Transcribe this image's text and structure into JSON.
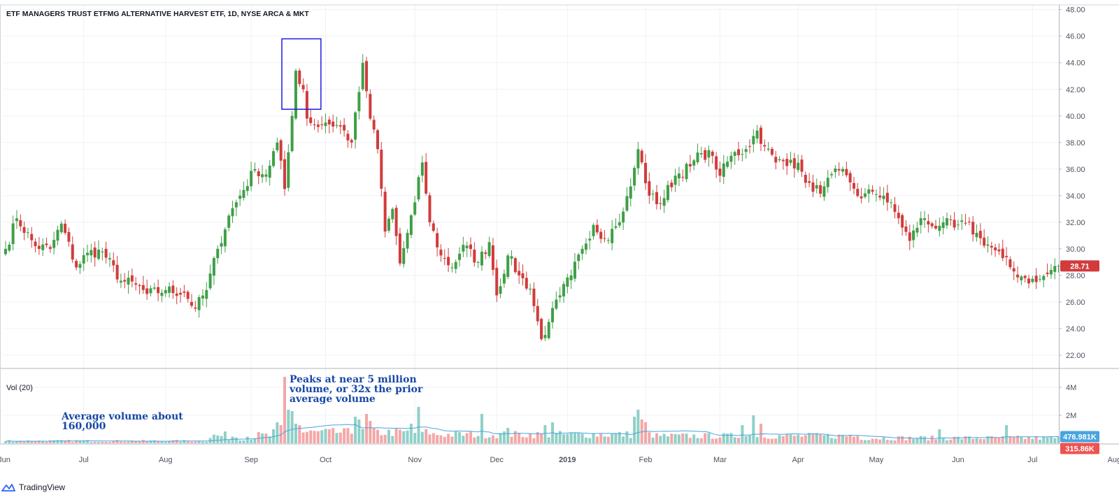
{
  "footer": {
    "brand": "TradingView",
    "logo_icon": "tradingview-logo-icon"
  },
  "chart_data": {
    "type": "candlestick",
    "title": "ETF MANAGERS TRUST ETFMG ALTERNATIVE HARVEST ETF, 1D, NYSE ARCA & MKT",
    "price_axis": {
      "ticks": [
        "48.00",
        "46.00",
        "44.00",
        "42.00",
        "40.00",
        "38.00",
        "36.00",
        "34.00",
        "32.00",
        "30.00",
        "28.00",
        "26.00",
        "24.00",
        "22.00"
      ],
      "ylim": [
        21.0,
        48.3
      ]
    },
    "last_price": {
      "label": "28.71",
      "value": 28.71
    },
    "volume": {
      "label": "Vol (20)",
      "ticks": [
        "4M",
        "2M"
      ],
      "ylim": [
        0,
        5200000
      ],
      "ma_label": "476.981K",
      "last_label": "315.86K"
    },
    "x_axis": {
      "labels": [
        {
          "text": "Jun",
          "index": -2
        },
        {
          "text": "Jul",
          "index": 21
        },
        {
          "text": "Aug",
          "index": 43
        },
        {
          "text": "Sep",
          "index": 66
        },
        {
          "text": "Oct",
          "index": 86
        },
        {
          "text": "Nov",
          "index": 110
        },
        {
          "text": "Dec",
          "index": 132
        },
        {
          "text": "2019",
          "index": 151
        },
        {
          "text": "Feb",
          "index": 172
        },
        {
          "text": "Mar",
          "index": 192
        },
        {
          "text": "Apr",
          "index": 213
        },
        {
          "text": "May",
          "index": 234
        },
        {
          "text": "Jun",
          "index": 256
        },
        {
          "text": "Jul",
          "index": 276
        },
        {
          "text": "Aug",
          "index": 298
        }
      ]
    },
    "highlight": {
      "index_start": 75,
      "index_end": 84,
      "price_low": 40.5,
      "price_high": 45.8
    },
    "annotations": [
      {
        "name": "annotation-average-volume",
        "lines": [
          "Average volume about",
          "160,000"
        ]
      },
      {
        "name": "annotation-peak-volume",
        "lines": [
          "Peaks at near 5 million",
          "volume, or 32x the prior",
          "average volume"
        ]
      }
    ],
    "colors": {
      "up": "#26a69a",
      "down": "#ef5350",
      "up_candle": "#3f9f47",
      "down_candle": "#d23b3b",
      "up_volume": "#8fd0c8",
      "down_volume": "#f4a7a7",
      "ma_line": "#4aa3e0",
      "annotation_text": "#1747a6",
      "highlight_box": "#1c1ce0"
    },
    "close_anchors": [
      [
        0,
        30.0
      ],
      [
        3,
        32.3
      ],
      [
        8,
        30.2
      ],
      [
        12,
        30.0
      ],
      [
        15,
        31.9
      ],
      [
        19,
        28.6
      ],
      [
        22,
        29.7
      ],
      [
        26,
        29.8
      ],
      [
        31,
        27.6
      ],
      [
        35,
        27.3
      ],
      [
        38,
        26.6
      ],
      [
        43,
        26.9
      ],
      [
        48,
        26.7
      ],
      [
        51,
        25.5
      ],
      [
        54,
        26.9
      ],
      [
        57,
        30.0
      ],
      [
        60,
        32.5
      ],
      [
        63,
        34.0
      ],
      [
        67,
        36.0
      ],
      [
        70,
        35.6
      ],
      [
        73,
        38.0
      ],
      [
        75,
        34.5
      ],
      [
        77,
        40.0
      ],
      [
        78,
        43.4
      ],
      [
        80,
        42.0
      ],
      [
        81,
        39.8
      ],
      [
        83,
        39.3
      ],
      [
        86,
        39.5
      ],
      [
        90,
        39.2
      ],
      [
        93,
        38.0
      ],
      [
        95,
        41.8
      ],
      [
        96,
        44.0
      ],
      [
        98,
        39.8
      ],
      [
        100,
        37.5
      ],
      [
        102,
        31.3
      ],
      [
        104,
        33.0
      ],
      [
        106,
        28.9
      ],
      [
        108,
        31.2
      ],
      [
        110,
        33.5
      ],
      [
        112,
        36.5
      ],
      [
        114,
        32.0
      ],
      [
        117,
        29.5
      ],
      [
        120,
        28.6
      ],
      [
        123,
        30.3
      ],
      [
        127,
        29.0
      ],
      [
        130,
        30.5
      ],
      [
        132,
        26.5
      ],
      [
        135,
        29.5
      ],
      [
        138,
        28.0
      ],
      [
        141,
        27.0
      ],
      [
        144,
        23.2
      ],
      [
        146,
        24.5
      ],
      [
        149,
        26.5
      ],
      [
        152,
        28.0
      ],
      [
        155,
        30.0
      ],
      [
        158,
        31.8
      ],
      [
        161,
        30.8
      ],
      [
        164,
        31.7
      ],
      [
        166,
        32.8
      ],
      [
        168,
        34.7
      ],
      [
        170,
        37.5
      ],
      [
        173,
        34.0
      ],
      [
        176,
        33.4
      ],
      [
        180,
        35.5
      ],
      [
        184,
        36.2
      ],
      [
        187,
        37.2
      ],
      [
        190,
        37.0
      ],
      [
        192,
        35.5
      ],
      [
        195,
        37.0
      ],
      [
        199,
        37.5
      ],
      [
        202,
        38.9
      ],
      [
        204,
        37.7
      ],
      [
        207,
        36.5
      ],
      [
        211,
        36.7
      ],
      [
        214,
        35.8
      ],
      [
        217,
        34.3
      ],
      [
        220,
        34.7
      ],
      [
        224,
        35.9
      ],
      [
        227,
        35.0
      ],
      [
        230,
        33.8
      ],
      [
        233,
        34.3
      ],
      [
        236,
        34.0
      ],
      [
        240,
        32.3
      ],
      [
        243,
        30.6
      ],
      [
        246,
        32.3
      ],
      [
        249,
        31.7
      ],
      [
        252,
        32.0
      ],
      [
        255,
        31.6
      ],
      [
        258,
        31.9
      ],
      [
        262,
        30.8
      ],
      [
        265,
        30.1
      ],
      [
        268,
        29.3
      ],
      [
        271,
        28.3
      ],
      [
        274,
        27.8
      ],
      [
        277,
        27.5
      ],
      [
        280,
        28.1
      ],
      [
        282,
        28.71
      ]
    ],
    "volume_spikes": [
      [
        75,
        4750000
      ],
      [
        76,
        2400000
      ],
      [
        77,
        2300000
      ],
      [
        73,
        1500000
      ],
      [
        74,
        1300000
      ],
      [
        78,
        1400000
      ],
      [
        79,
        1300000
      ],
      [
        94,
        1900000
      ],
      [
        95,
        1700000
      ],
      [
        97,
        2100000
      ],
      [
        98,
        1600000
      ],
      [
        111,
        2600000
      ],
      [
        109,
        1400000
      ],
      [
        128,
        2100000
      ],
      [
        135,
        1100000
      ],
      [
        145,
        1300000
      ],
      [
        147,
        1500000
      ],
      [
        170,
        2400000
      ],
      [
        169,
        1900000
      ],
      [
        171,
        1700000
      ],
      [
        172,
        1500000
      ],
      [
        198,
        1300000
      ],
      [
        201,
        2000000
      ],
      [
        203,
        1400000
      ],
      [
        269,
        1300000
      ],
      [
        251,
        1000000
      ]
    ]
  }
}
